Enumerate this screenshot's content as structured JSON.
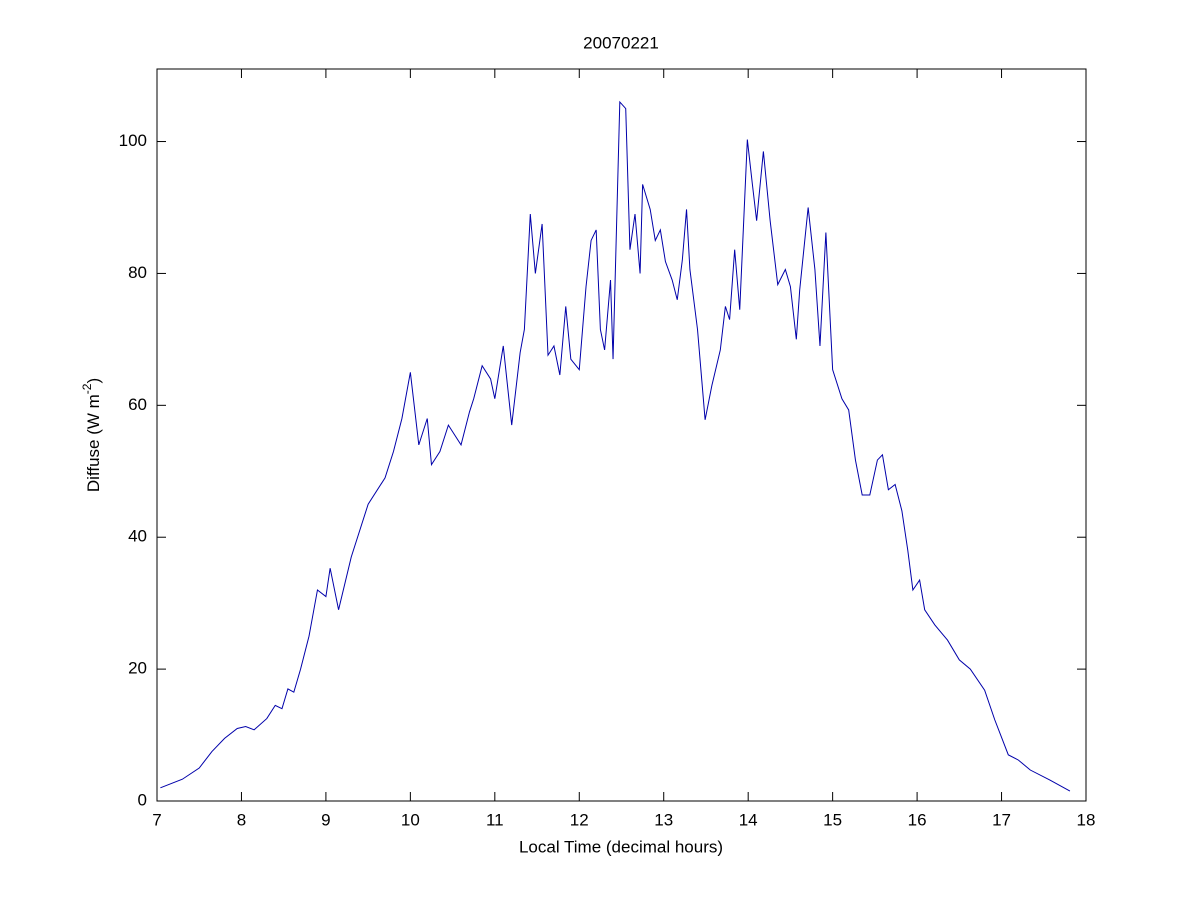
{
  "chart_data": {
    "type": "line",
    "title": "20070221",
    "xlabel": "Local Time (decimal hours)",
    "ylabel": [
      "Diffuse (W m",
      "-2",
      ")"
    ],
    "color": "#0000aa",
    "x": [
      7.04,
      7.3,
      7.5,
      7.65,
      7.8,
      7.95,
      8.05,
      8.15,
      8.3,
      8.4,
      8.48,
      8.55,
      8.62,
      8.7,
      8.8,
      8.9,
      9.0,
      9.05,
      9.15,
      9.3,
      9.5,
      9.7,
      9.8,
      9.9,
      10.0,
      10.1,
      10.2,
      10.25,
      10.35,
      10.45,
      10.6,
      10.7,
      10.75,
      10.85,
      10.95,
      11.0,
      11.1,
      11.2,
      11.3,
      11.35,
      11.42,
      11.48,
      11.56,
      11.63,
      11.7,
      11.77,
      11.84,
      11.9,
      12.0,
      12.08,
      12.14,
      12.2,
      12.25,
      12.3,
      12.37,
      12.4,
      12.48,
      12.55,
      12.6,
      12.66,
      12.72,
      12.75,
      12.84,
      12.9,
      12.96,
      13.02,
      13.1,
      13.16,
      13.22,
      13.27,
      13.31,
      13.4,
      13.49,
      13.57,
      13.67,
      13.73,
      13.78,
      13.84,
      13.9,
      13.99,
      14.05,
      14.1,
      14.18,
      14.26,
      14.35,
      14.44,
      14.5,
      14.57,
      14.61,
      14.71,
      14.79,
      14.85,
      14.92,
      15.0,
      15.11,
      15.19,
      15.27,
      15.35,
      15.44,
      15.53,
      15.59,
      15.66,
      15.74,
      15.82,
      15.89,
      15.95,
      16.03,
      16.09,
      16.21,
      16.36,
      16.5,
      16.63,
      16.8,
      16.92,
      17.08,
      17.2,
      17.34,
      17.57,
      17.81
    ],
    "values": [
      2,
      3.3,
      5,
      7.5,
      9.5,
      11,
      11.3,
      10.8,
      12.5,
      14.5,
      14,
      17,
      16.5,
      20,
      25,
      32,
      31,
      35.3,
      29,
      37,
      45,
      49,
      53,
      58,
      65,
      54,
      58,
      51,
      53,
      57,
      54,
      59,
      61,
      66,
      64,
      61,
      69,
      57,
      68,
      71.5,
      89,
      80,
      87.5,
      67.6,
      69,
      64.6,
      75,
      67,
      65.4,
      78,
      85,
      86.6,
      71.5,
      68.4,
      79,
      67,
      106,
      105,
      83.6,
      89,
      80,
      93.5,
      89.7,
      85,
      86.6,
      81.8,
      79,
      76,
      82,
      89.7,
      80.6,
      71.5,
      57.8,
      63,
      68.4,
      75,
      73,
      83.6,
      74.5,
      100.3,
      93.5,
      88,
      98.5,
      88,
      78.3,
      80.6,
      78,
      70,
      77.5,
      90,
      80.6,
      69,
      86.2,
      65.4,
      61,
      59.3,
      51.7,
      46.4,
      46.4,
      51.7,
      52.5,
      47.2,
      48,
      44,
      38,
      32,
      33.5,
      29,
      26.7,
      24.4,
      21.4,
      20,
      16.8,
      12.3,
      7,
      6.2,
      4.7,
      3.2,
      1.5
    ],
    "xlim": [
      7,
      18
    ],
    "xticks": [
      7,
      8,
      9,
      10,
      11,
      12,
      13,
      14,
      15,
      16,
      17,
      18
    ],
    "ylim": [
      0,
      111
    ],
    "yticks": [
      0,
      20,
      40,
      60,
      80,
      100
    ]
  }
}
